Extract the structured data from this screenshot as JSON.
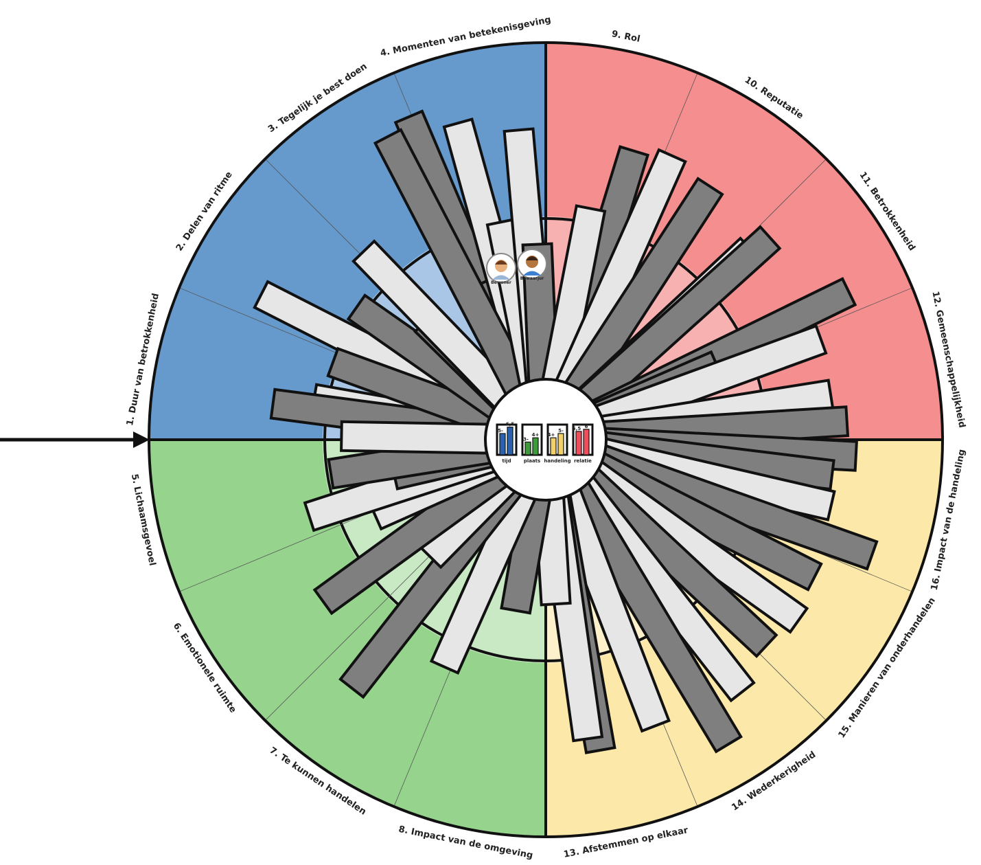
{
  "chart_data": {
    "type": "radial-bar",
    "title": "",
    "categories": [
      "1. Duur van betrokkenheid",
      "2. Delen van ritme",
      "3. Tegelijk je best doen",
      "4. Momenten van betekenisgeving",
      "5. Lichaamsgevoel",
      "6. Emotionele ruimte",
      "7. Te kunnen handelen",
      "8. Impact van de omgeving",
      "9. Rol",
      "10. Reputatie",
      "11. Betrokkenheid",
      "12. Gemeenschappelijkheid",
      "13. Afstemmen op elkaar",
      "14. Wederkerigheid",
      "15. Manieren van onderhandelen",
      "16. Impact van de handeling"
    ],
    "categories_order_clockwise_from_top": [
      9,
      10,
      11,
      12,
      16,
      15,
      14,
      13,
      8,
      7,
      6,
      5,
      1,
      2,
      3,
      4
    ],
    "groups": [
      {
        "name": "tijd",
        "items": [
          1,
          2,
          3,
          4
        ],
        "color": "#6699cc",
        "light": "#a9c6e6",
        "bar_color": "#2b62b0"
      },
      {
        "name": "plaats",
        "items": [
          5,
          6,
          7,
          8
        ],
        "color": "#96d48e",
        "light": "#c9e8c4",
        "bar_color": "#3f9a3c"
      },
      {
        "name": "handeling",
        "items": [
          13,
          14,
          15,
          16
        ],
        "color": "#fce8a8",
        "light": "#fdf1cc",
        "bar_color": "#f2d16b"
      },
      {
        "name": "relatie",
        "items": [
          9,
          10,
          11,
          12
        ],
        "color": "#f58e8e",
        "light": "#f8b1b1",
        "bar_color": "#ee4f5b"
      }
    ],
    "series": [
      {
        "name": "Bewoner",
        "color": "#e6e6e6"
      },
      {
        "name": "Bewaarjur",
        "color": "#7f7f7f"
      }
    ],
    "bars": [
      {
        "angle": -80,
        "value": 5.5,
        "series": 0
      },
      {
        "angle": -82.5,
        "value": 6.4,
        "series": 1
      },
      {
        "angle": -63,
        "value": 7.4,
        "series": 0
      },
      {
        "angle": -70,
        "value": 5.3,
        "series": 1
      },
      {
        "angle": -55,
        "value": 5.4,
        "series": 1
      },
      {
        "angle": -45.5,
        "value": 4.0,
        "series": 1
      },
      {
        "angle": -44,
        "value": 6.1,
        "series": 0
      },
      {
        "angle": -23,
        "value": 8.1,
        "series": 1
      },
      {
        "angle": -24,
        "value": 4.0,
        "series": 1
      },
      {
        "angle": -15.5,
        "value": 7.6,
        "series": 0
      },
      {
        "angle": -27.5,
        "value": 7.9,
        "series": 1
      },
      {
        "angle": -11.5,
        "value": 5.2,
        "series": 0
      },
      {
        "angle": -5,
        "value": 7.2,
        "series": 0
      },
      {
        "angle": -2.5,
        "value": 4.6,
        "series": 1
      },
      {
        "angle": 17,
        "value": 7.0,
        "series": 1
      },
      {
        "angle": 11,
        "value": 5.5,
        "series": 0
      },
      {
        "angle": 24,
        "value": 7.2,
        "series": 0
      },
      {
        "angle": 33,
        "value": 7.0,
        "series": 1
      },
      {
        "angle": 47,
        "value": 6.5,
        "series": 0
      },
      {
        "angle": 48,
        "value": 7.0,
        "series": 1
      },
      {
        "angle": 64,
        "value": 7.8,
        "series": 1
      },
      {
        "angle": 66.5,
        "value": 4.4,
        "series": 1
      },
      {
        "angle": 70,
        "value": 6.8,
        "series": 0
      },
      {
        "angle": 81,
        "value": 6.7,
        "series": 0
      },
      {
        "angle": 86.5,
        "value": 7.0,
        "series": 1
      },
      {
        "angle": 93,
        "value": 7.2,
        "series": 1
      },
      {
        "angle": 97,
        "value": 6.7,
        "series": 1
      },
      {
        "angle": 103,
        "value": 6.8,
        "series": 0
      },
      {
        "angle": 109.5,
        "value": 8.0,
        "series": 1
      },
      {
        "angle": 117,
        "value": 7.0,
        "series": 1
      },
      {
        "angle": 125.5,
        "value": 7.2,
        "series": 0
      },
      {
        "angle": 133,
        "value": 7.0,
        "series": 1
      },
      {
        "angle": 142,
        "value": 7.4,
        "series": 0
      },
      {
        "angle": 149,
        "value": 8.2,
        "series": 1
      },
      {
        "angle": 159,
        "value": 7.1,
        "series": 0
      },
      {
        "angle": 170,
        "value": 7.3,
        "series": 1
      },
      {
        "angle": 172,
        "value": 7.0,
        "series": 0
      },
      {
        "angle": 176.5,
        "value": 3.9,
        "series": 0
      },
      {
        "angle": 190,
        "value": 4.1,
        "series": 1
      },
      {
        "angle": 204,
        "value": 5.8,
        "series": 0
      },
      {
        "angle": 218,
        "value": 7.3,
        "series": 1
      },
      {
        "angle": 224.5,
        "value": 3.9,
        "series": 0
      },
      {
        "angle": 234,
        "value": 6.4,
        "series": 1
      },
      {
        "angle": 246,
        "value": 4.4,
        "series": 0
      },
      {
        "angle": 252,
        "value": 5.8,
        "series": 0
      },
      {
        "angle": 257,
        "value": 3.7,
        "series": 1
      },
      {
        "angle": 261,
        "value": 5.1,
        "series": 1
      },
      {
        "angle": 271,
        "value": 4.8,
        "series": 0
      }
    ],
    "scale": {
      "min": 0,
      "max": 10,
      "inner_bands": [
        4.6,
        5.5
      ]
    },
    "legend": {
      "position": "center",
      "items": [
        {
          "name": "tijd",
          "low_label": "5-",
          "high_label": "6,5",
          "low": 5,
          "high": 6.5
        },
        {
          "name": "plaats",
          "low_label": "3-",
          "high_label": "4+",
          "low": 3,
          "high": 4
        },
        {
          "name": "handeling",
          "low_label": "4+",
          "high_label": "5-",
          "low": 4,
          "high": 5
        },
        {
          "name": "relatie",
          "low_label": "5,5",
          "high_label": "6",
          "low": 5.5,
          "high": 6
        }
      ]
    },
    "avatars": [
      "Bewoner",
      "Bewaarjur"
    ]
  }
}
